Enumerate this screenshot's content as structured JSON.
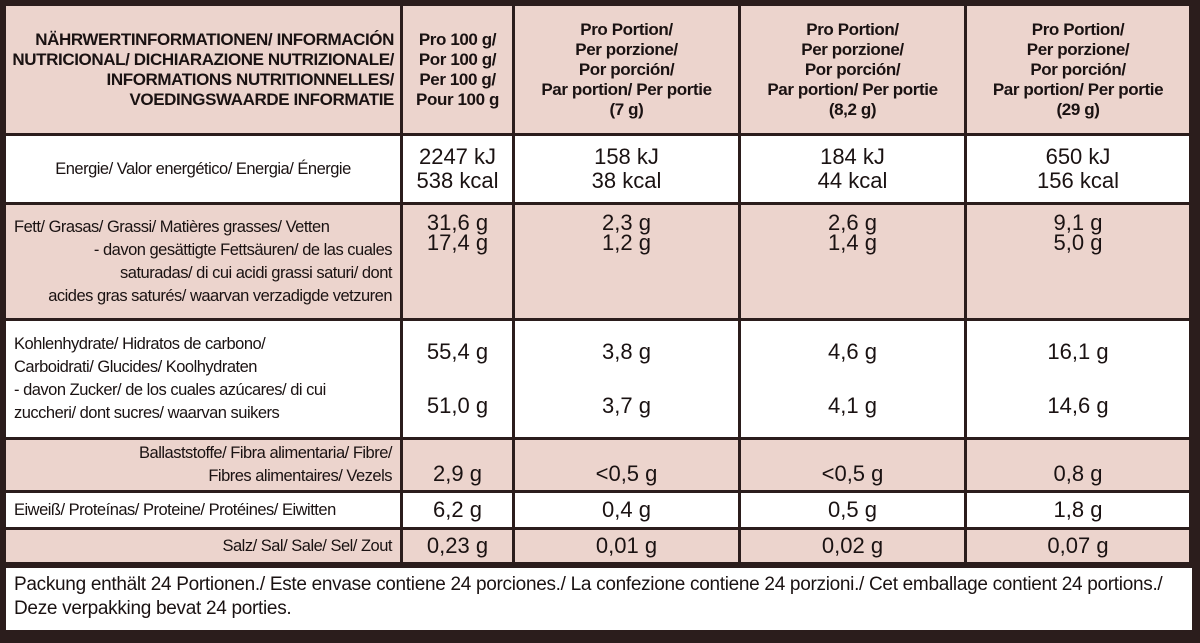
{
  "table": {
    "header": {
      "label": [
        "NÄHRWERTINFORMATIONEN/ INFORMACIÓN",
        "NUTRICIONAL/ DICHIARAZIONE NUTRIZIONALE/",
        "INFORMATIONS NUTRITIONNELLES/",
        "VOEDINGSWAARDE INFORMATIE"
      ],
      "columns": [
        [
          "Pro 100 g/",
          "Por 100 g/",
          "Per 100 g/",
          "Pour 100 g"
        ],
        [
          "Pro Portion/",
          "Per porzione/",
          "Por porción/",
          "Par portion/ Per portie",
          "(7 g)"
        ],
        [
          "Pro Portion/",
          "Per porzione/",
          "Por porción/",
          "Par portion/ Per portie",
          "(8,2 g)"
        ],
        [
          "Pro Portion/",
          "Per porzione/",
          "Por porción/",
          "Par portion/ Per portie",
          "(29 g)"
        ]
      ]
    },
    "rows": [
      {
        "label": [
          "Energie/ Valor energético/ Energia/ Énergie"
        ],
        "values": [
          [
            "2247 kJ",
            "538 kcal"
          ],
          [
            "158 kJ",
            "38 kcal"
          ],
          [
            "184 kJ",
            "44 kcal"
          ],
          [
            "650 kJ",
            "156 kcal"
          ]
        ]
      },
      {
        "label": [
          "Fett/ Grasas/ Grassi/ Matières grasses/ Vetten",
          "- davon gesättigte Fettsäuren/ de las cuales",
          "saturadas/ di cui acidi grassi saturi/ dont",
          "acides gras saturés/ waarvan verzadigde vetzuren"
        ],
        "values": [
          [
            "31,6 g",
            "17,4 g"
          ],
          [
            "2,3 g",
            "1,2 g"
          ],
          [
            "2,6 g",
            "1,4 g"
          ],
          [
            "9,1 g",
            "5,0 g"
          ]
        ]
      },
      {
        "label": [
          "Kohlenhydrate/ Hidratos de carbono/",
          "Carboidrati/ Glucides/ Koolhydraten",
          "- davon Zucker/ de los cuales azúcares/ di cui",
          "zuccheri/ dont sucres/ waarvan suikers"
        ],
        "values": [
          [
            "55,4 g",
            "51,0 g"
          ],
          [
            "3,8 g",
            "3,7 g"
          ],
          [
            "4,6 g",
            "4,1 g"
          ],
          [
            "16,1 g",
            "14,6 g"
          ]
        ]
      },
      {
        "label": [
          "Ballaststoffe/ Fibra alimentaria/ Fibre/",
          "Fibres alimentaires/ Vezels"
        ],
        "values": [
          [
            "2,9 g"
          ],
          [
            "<0,5 g"
          ],
          [
            "<0,5 g"
          ],
          [
            "0,8 g"
          ]
        ]
      },
      {
        "label": [
          "Eiweiß/ Proteínas/ Proteine/ Protéines/ Eiwitten"
        ],
        "values": [
          [
            "6,2 g"
          ],
          [
            "0,4 g"
          ],
          [
            "0,5 g"
          ],
          [
            "1,8 g"
          ]
        ]
      },
      {
        "label": [
          "Salz/ Sal/ Sale/ Sel/ Zout"
        ],
        "values": [
          [
            "0,23 g"
          ],
          [
            "0,01 g"
          ],
          [
            "0,02 g"
          ],
          [
            "0,07 g"
          ]
        ]
      }
    ],
    "footer": "Packung enthält 24 Portionen./ Este envase contiene 24 porciones./ La confezione contiene 24 porzioni./ Cet emballage contient 24 portions./ Deze verpakking bevat 24 porties."
  }
}
